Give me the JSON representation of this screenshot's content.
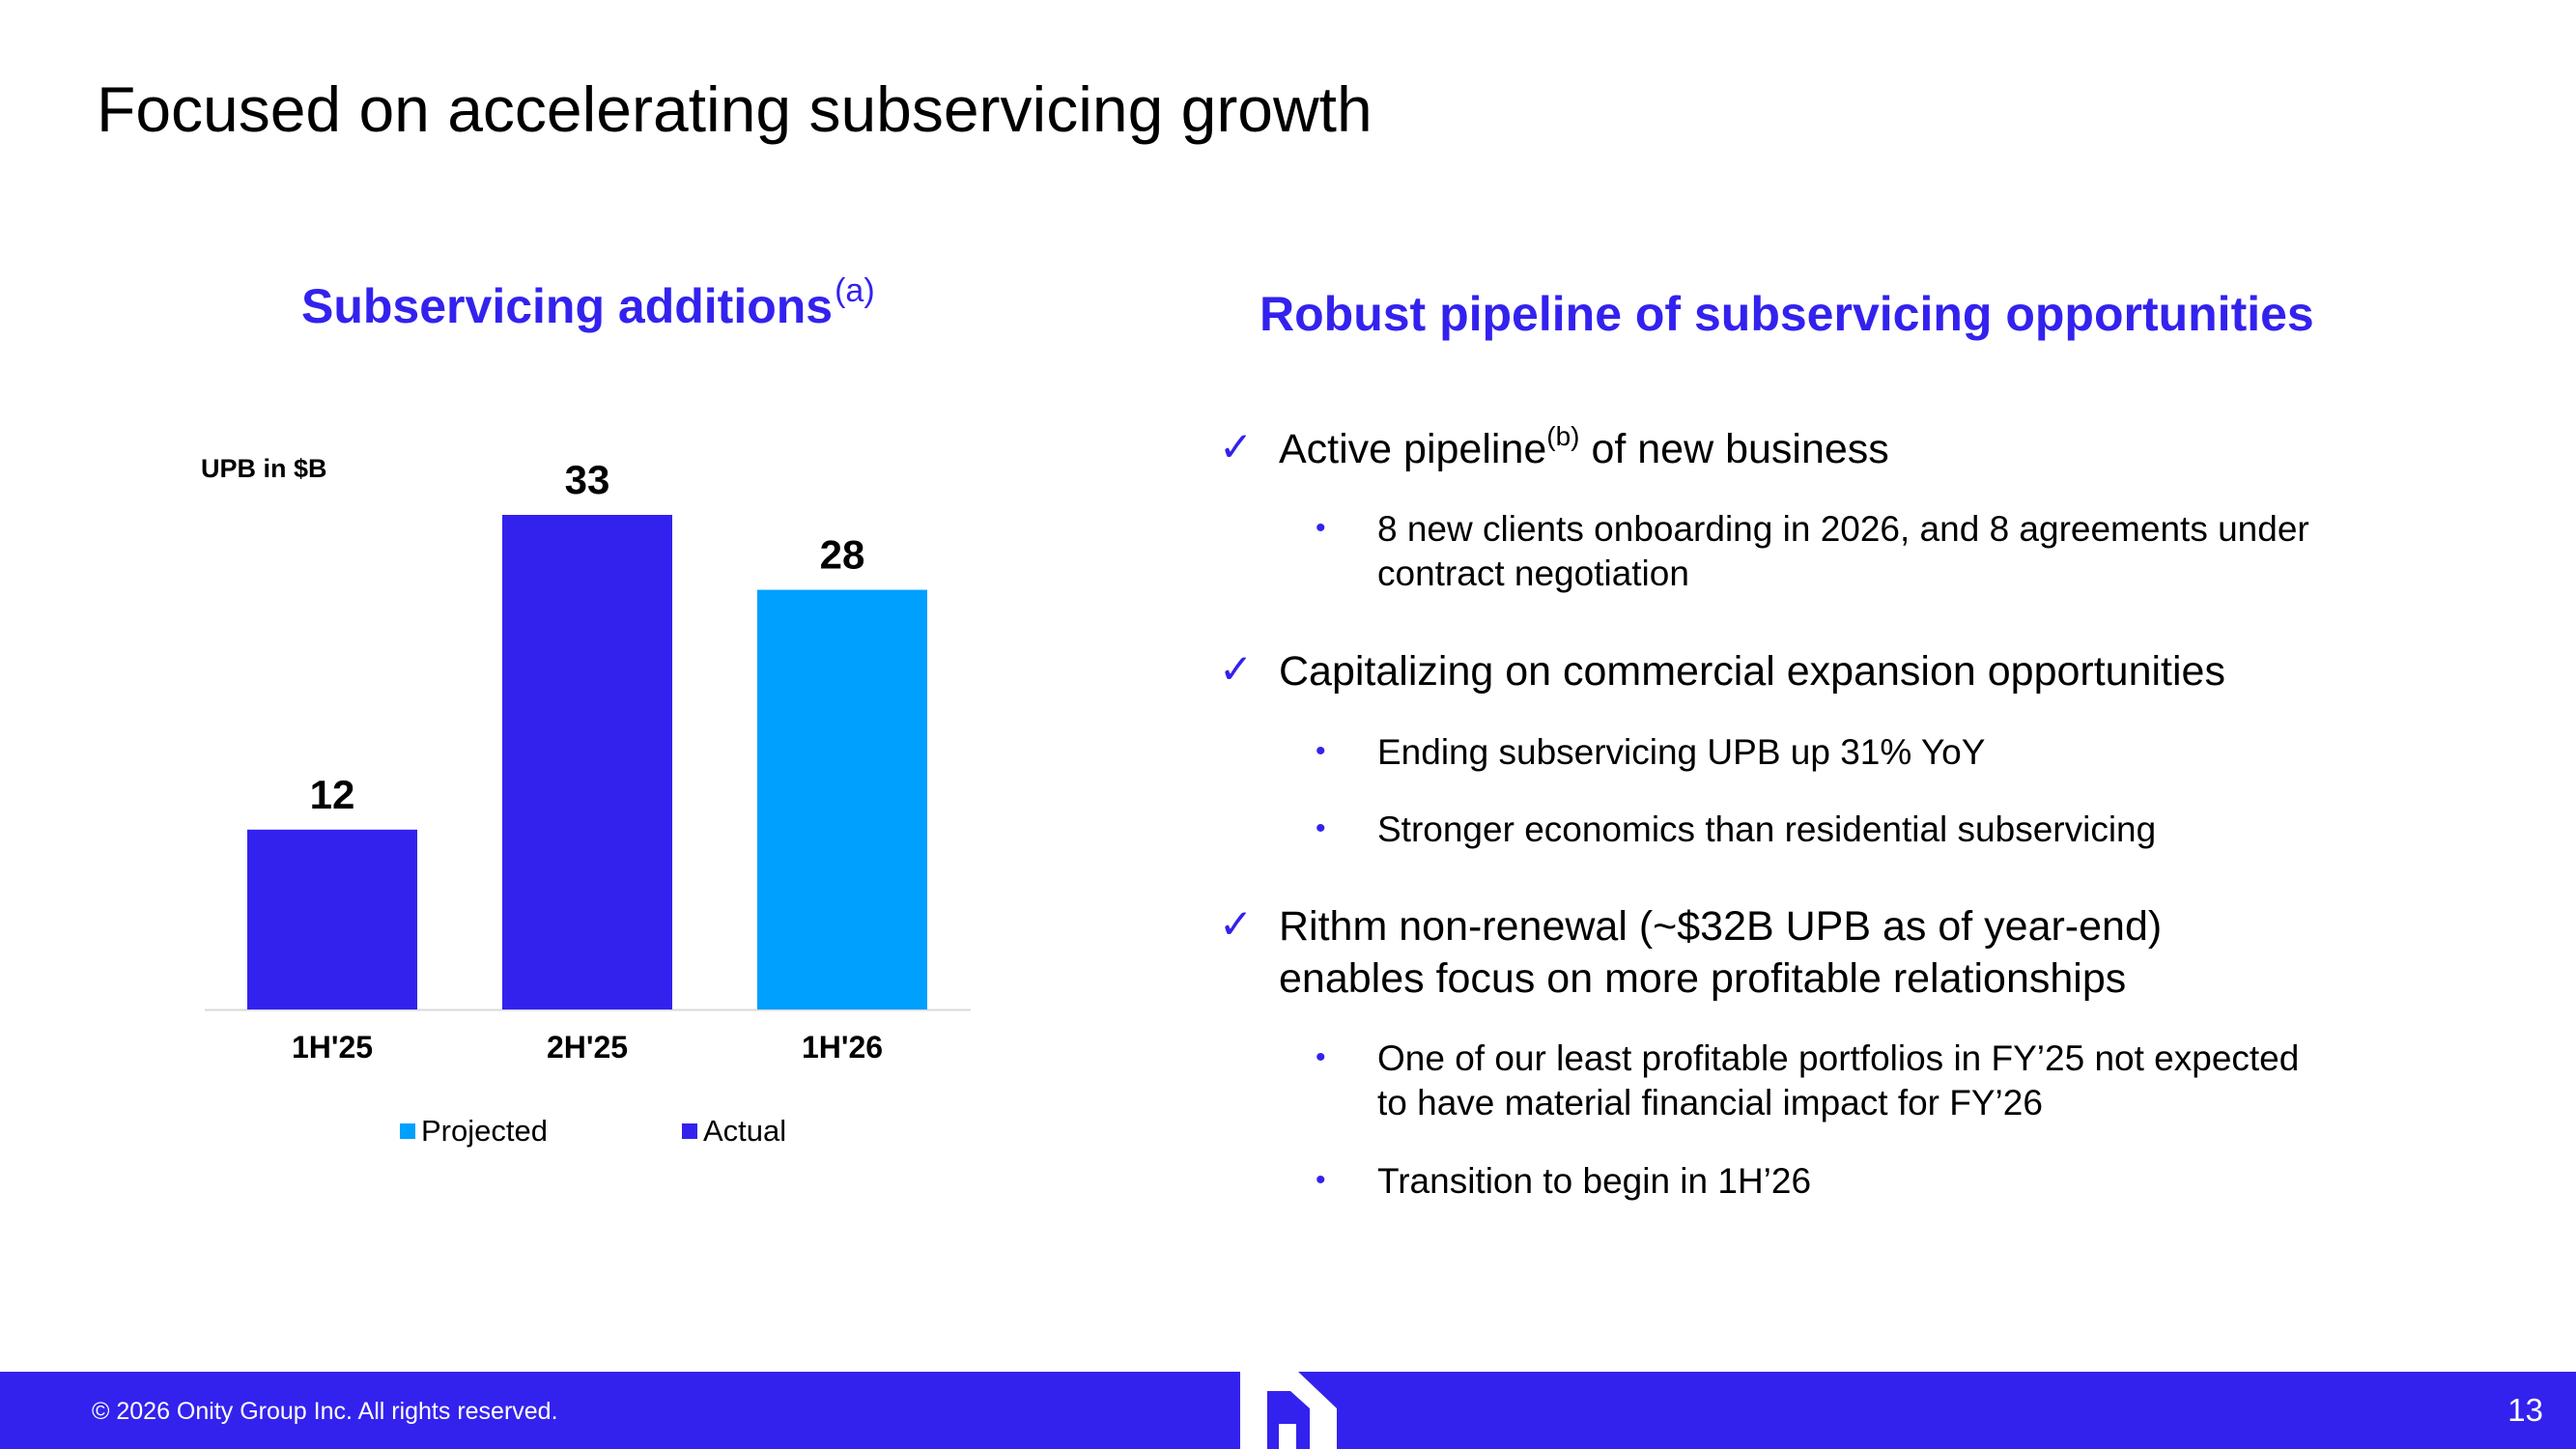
{
  "slide": {
    "title": "Focused on accelerating subservicing growth",
    "page_number": "13",
    "copyright": "© 2026 Onity Group Inc. All rights reserved."
  },
  "left_panel": {
    "title": "Subservicing additions",
    "title_footnote": "(a)",
    "unit_label": "UPB in $B"
  },
  "chart_data": {
    "type": "bar",
    "title": "Subservicing additions",
    "ylabel": "UPB in $B",
    "xlabel": "",
    "categories": [
      "1H'25",
      "2H'25",
      "1H'26"
    ],
    "values": [
      12,
      33,
      28
    ],
    "series_type": [
      "Actual",
      "Actual",
      "Projected"
    ],
    "ylim": [
      0,
      33
    ],
    "grid": false,
    "legend": [
      {
        "name": "Projected",
        "color": "#00a0ff"
      },
      {
        "name": "Actual",
        "color": "#3322ee"
      }
    ],
    "legend_position": "bottom"
  },
  "colors": {
    "actual": "#3322ee",
    "projected": "#00a0ff",
    "accent": "#3322ee"
  },
  "right_panel": {
    "title": "Robust pipeline of subservicing opportunities",
    "points": [
      {
        "icon": "checkmark-icon",
        "text_before": "Active pipeline",
        "footnote": "(b)",
        "text_after": " of new business",
        "subpoints": [
          {
            "line1": "8 new clients onboarding in 2026, and 8 agreements under",
            "line2": "contract negotiation"
          }
        ]
      },
      {
        "icon": "checkmark-icon",
        "text": "Capitalizing on commercial expansion opportunities",
        "subpoints": [
          {
            "line1": "Ending subservicing UPB up 31% YoY"
          },
          {
            "line1": "Stronger economics than residential subservicing"
          }
        ]
      },
      {
        "icon": "checkmark-icon",
        "line1": "Rithm non-renewal (~$32B UPB as of year-end)",
        "line2": "enables focus on more profitable relationships",
        "subpoints": [
          {
            "line1": "One of our least profitable portfolios in FY’25 not expected",
            "line2": "to have material financial impact for FY’26"
          },
          {
            "line1": "Transition to begin in 1H’26"
          }
        ]
      }
    ]
  }
}
